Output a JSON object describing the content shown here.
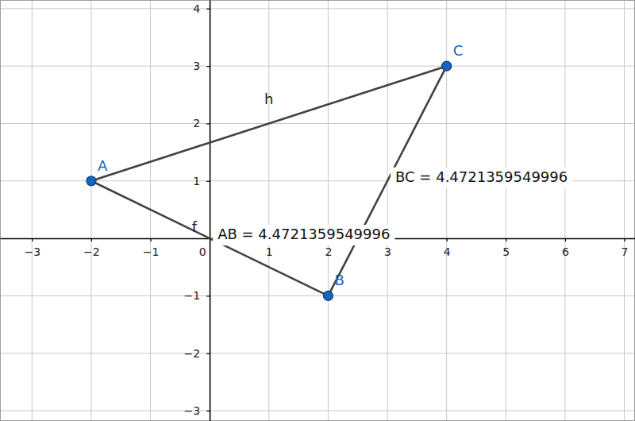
{
  "chart_data": {
    "type": "geometry",
    "xlim": [
      -3.54,
      7.18
    ],
    "ylim": [
      -3.18,
      4.15
    ],
    "xticks": [
      {
        "value": -3,
        "label": "−3"
      },
      {
        "value": -2,
        "label": "−2"
      },
      {
        "value": -1,
        "label": "−1"
      },
      0,
      1,
      2,
      3,
      4,
      5,
      6,
      7
    ],
    "yticks": [
      {
        "value": -3,
        "label": "−3"
      },
      {
        "value": -2,
        "label": "−2"
      },
      {
        "value": -1,
        "label": "−1"
      },
      1,
      2,
      3,
      4
    ],
    "grid": true,
    "color": "#1565c0",
    "points": [
      {
        "label": "A",
        "x": -2,
        "y": 1
      },
      {
        "label": "B",
        "x": 2,
        "y": -1
      },
      {
        "label": "C",
        "x": 4,
        "y": 3
      }
    ],
    "segments": [
      {
        "name": "h",
        "points": [
          "A",
          "C"
        ]
      },
      {
        "name": "f",
        "points": [
          "A",
          "B"
        ],
        "label": "AB = 4.4721359549996"
      },
      {
        "points": [
          "B",
          "C"
        ],
        "label": "BC = 4.4721359549996"
      }
    ]
  }
}
